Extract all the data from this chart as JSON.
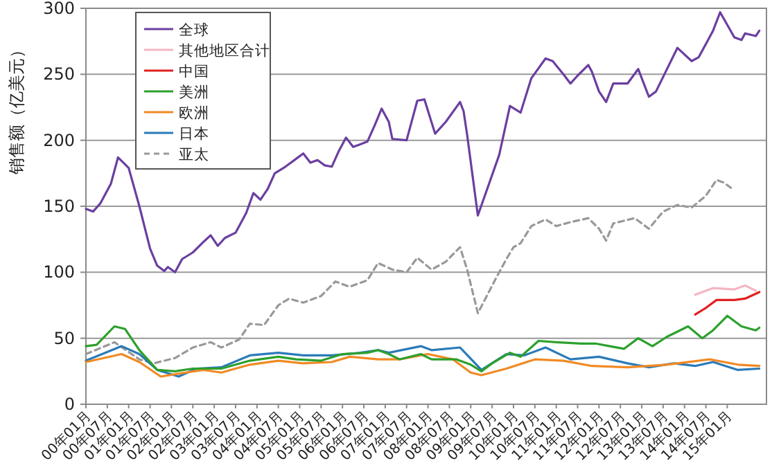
{
  "chart_data": {
    "type": "line",
    "ylabel": "销售额（亿美元）",
    "xlim": [
      "2000-01",
      "2015-12"
    ],
    "ylim": [
      0,
      300
    ],
    "yticks": [
      0,
      50,
      100,
      150,
      200,
      250,
      300
    ],
    "grid": "y",
    "legend": "top left",
    "xticks": [
      {
        "value": "2000-01",
        "label": "00年01月"
      },
      {
        "value": "2000-07",
        "label": "00年07月"
      },
      {
        "value": "2001-01",
        "label": "01年01月"
      },
      {
        "value": "2001-07",
        "label": "01年07月"
      },
      {
        "value": "2002-01",
        "label": "02年01月"
      },
      {
        "value": "2002-07",
        "label": "02年07月"
      },
      {
        "value": "2003-01",
        "label": "03年01月"
      },
      {
        "value": "2003-07",
        "label": "03年07月"
      },
      {
        "value": "2004-01",
        "label": "04年01月"
      },
      {
        "value": "2004-07",
        "label": "04年07月"
      },
      {
        "value": "2005-01",
        "label": "05年01月"
      },
      {
        "value": "2005-07",
        "label": "05年07月"
      },
      {
        "value": "2006-01",
        "label": "06年01月"
      },
      {
        "value": "2006-07",
        "label": "06年07月"
      },
      {
        "value": "2007-01",
        "label": "07年01月"
      },
      {
        "value": "2007-07",
        "label": "07年07月"
      },
      {
        "value": "2008-01",
        "label": "08年01月"
      },
      {
        "value": "2008-07",
        "label": "08年07月"
      },
      {
        "value": "2009-01",
        "label": "09年01月"
      },
      {
        "value": "2009-07",
        "label": "09年07月"
      },
      {
        "value": "2010-01",
        "label": "10年01月"
      },
      {
        "value": "2010-07",
        "label": "10年07月"
      },
      {
        "value": "2011-01",
        "label": "11年01月"
      },
      {
        "value": "2011-07",
        "label": "11年07月"
      },
      {
        "value": "2012-01",
        "label": "12年01月"
      },
      {
        "value": "2012-07",
        "label": "12年07月"
      },
      {
        "value": "2013-01",
        "label": "13年01月"
      },
      {
        "value": "2013-07",
        "label": "13年07月"
      },
      {
        "value": "2014-01",
        "label": "14年01月"
      },
      {
        "value": "2014-07",
        "label": "14年07月"
      },
      {
        "value": "2015-01",
        "label": "15年01月"
      }
    ],
    "series": [
      {
        "name": "全球",
        "color": "#6b3fa0",
        "x": [
          "2000-01",
          "2000-03",
          "2000-05",
          "2000-08",
          "2000-10",
          "2001-01",
          "2001-04",
          "2001-07",
          "2001-09",
          "2001-11",
          "2001-12",
          "2002-02",
          "2002-04",
          "2002-07",
          "2002-10",
          "2002-12",
          "2003-02",
          "2003-04",
          "2003-07",
          "2003-10",
          "2003-12",
          "2004-02",
          "2004-04",
          "2004-06",
          "2004-09",
          "2004-12",
          "2005-02",
          "2005-04",
          "2005-06",
          "2005-08",
          "2005-10",
          "2005-12",
          "2006-02",
          "2006-04",
          "2006-06",
          "2006-08",
          "2006-10",
          "2006-12",
          "2007-02",
          "2007-03",
          "2007-07",
          "2007-10",
          "2007-12",
          "2008-03",
          "2008-06",
          "2008-10",
          "2008-11",
          "2008-12",
          "2009-03",
          "2009-06",
          "2009-09",
          "2009-12",
          "2010-03",
          "2010-06",
          "2010-10",
          "2010-12",
          "2011-03",
          "2011-05",
          "2011-07",
          "2011-10",
          "2011-11",
          "2012-01",
          "2012-03",
          "2012-05",
          "2012-09",
          "2012-12",
          "2013-03",
          "2013-05",
          "2013-07",
          "2013-11",
          "2014-03",
          "2014-05",
          "2014-09",
          "2014-11",
          "2015-03",
          "2015-05",
          "2015-06",
          "2015-09",
          "2015-10"
        ],
        "values": [
          148,
          146,
          152,
          167,
          187,
          179,
          150,
          118,
          105,
          101,
          104,
          100,
          110,
          115,
          123,
          128,
          120,
          126,
          130,
          145,
          160,
          155,
          163,
          175,
          180,
          186,
          190,
          183,
          185,
          181,
          180,
          192,
          202,
          195,
          197,
          199,
          211,
          224,
          214,
          201,
          200,
          230,
          231,
          205,
          214,
          229,
          222,
          204,
          143,
          166,
          189,
          226,
          221,
          247,
          262,
          260,
          250,
          243,
          249,
          257,
          252,
          237,
          229,
          243,
          243,
          254,
          233,
          237,
          248,
          270,
          260,
          263,
          283,
          297,
          278,
          276,
          281,
          279,
          283
        ]
      },
      {
        "name": "其他地区合计",
        "color": "#f4b6c2",
        "x": [
          "2014-04",
          "2014-09",
          "2015-03",
          "2015-06",
          "2015-09"
        ],
        "values": [
          83,
          88,
          87,
          90,
          86
        ]
      },
      {
        "name": "中国",
        "color": "#e02020",
        "x": [
          "2014-04",
          "2014-07",
          "2014-10",
          "2015-03",
          "2015-06",
          "2015-10"
        ],
        "values": [
          68,
          73,
          79,
          79,
          80,
          85
        ]
      },
      {
        "name": "美洲",
        "color": "#2ca02c",
        "x": [
          "2000-01",
          "2000-04",
          "2000-09",
          "2000-12",
          "2001-04",
          "2001-09",
          "2002-02",
          "2002-07",
          "2003-03",
          "2003-11",
          "2004-07",
          "2004-12",
          "2005-07",
          "2006-01",
          "2006-08",
          "2006-11",
          "2007-02",
          "2007-05",
          "2007-11",
          "2008-02",
          "2008-09",
          "2009-01",
          "2009-04",
          "2009-07",
          "2009-12",
          "2010-03",
          "2010-08",
          "2011-01",
          "2011-08",
          "2011-12",
          "2012-04",
          "2012-08",
          "2012-12",
          "2013-04",
          "2013-08",
          "2014-02",
          "2014-06",
          "2014-09",
          "2015-01",
          "2015-05",
          "2015-09",
          "2015-10"
        ],
        "values": [
          44,
          45,
          59,
          57,
          41,
          26,
          25,
          27,
          27,
          33,
          36,
          34,
          33,
          38,
          39,
          41,
          38,
          34,
          38,
          34,
          34,
          30,
          25,
          31,
          39,
          36,
          48,
          47,
          46,
          46,
          44,
          42,
          50,
          44,
          51,
          59,
          50,
          56,
          67,
          59,
          56,
          58
        ]
      },
      {
        "name": "欧洲",
        "color": "#f08a24",
        "x": [
          "2000-01",
          "2000-11",
          "2001-04",
          "2001-10",
          "2002-05",
          "2002-10",
          "2003-03",
          "2003-11",
          "2004-07",
          "2005-02",
          "2005-10",
          "2006-03",
          "2006-11",
          "2007-05",
          "2008-01",
          "2008-08",
          "2009-01",
          "2009-04",
          "2009-11",
          "2010-07",
          "2011-03",
          "2011-11",
          "2012-09",
          "2013-08",
          "2014-08",
          "2015-04",
          "2015-10"
        ],
        "values": [
          32,
          38,
          32,
          21,
          24,
          26,
          24,
          30,
          33,
          31,
          32,
          36,
          34,
          34,
          38,
          34,
          24,
          22,
          27,
          34,
          33,
          29,
          28,
          30,
          34,
          30,
          29
        ]
      },
      {
        "name": "日本",
        "color": "#2a7ab8",
        "x": [
          "2000-01",
          "2000-11",
          "2001-04",
          "2001-09",
          "2002-03",
          "2002-08",
          "2003-03",
          "2003-11",
          "2004-07",
          "2005-02",
          "2005-10",
          "2006-06",
          "2006-11",
          "2007-02",
          "2007-11",
          "2008-02",
          "2008-10",
          "2009-04",
          "2009-11",
          "2010-04",
          "2010-10",
          "2011-05",
          "2012-01",
          "2012-09",
          "2013-03",
          "2013-10",
          "2014-04",
          "2014-09",
          "2015-04",
          "2015-10"
        ],
        "values": [
          33,
          44,
          38,
          26,
          21,
          27,
          28,
          37,
          39,
          37,
          37,
          39,
          41,
          39,
          44,
          41,
          43,
          26,
          38,
          37,
          43,
          34,
          36,
          31,
          28,
          31,
          29,
          32,
          26,
          27
        ]
      },
      {
        "name": "亚太",
        "color": "#999999",
        "line_style": "dashed",
        "x": [
          "2000-01",
          "2000-09",
          "2001-04",
          "2001-08",
          "2002-02",
          "2002-07",
          "2002-12",
          "2003-03",
          "2003-08",
          "2003-11",
          "2004-03",
          "2004-07",
          "2004-10",
          "2005-02",
          "2005-07",
          "2005-11",
          "2006-03",
          "2006-08",
          "2006-11",
          "2007-03",
          "2007-07",
          "2007-10",
          "2008-02",
          "2008-06",
          "2008-10",
          "2008-12",
          "2009-03",
          "2009-08",
          "2009-11",
          "2010-01",
          "2010-03",
          "2010-06",
          "2010-10",
          "2011-01",
          "2011-05",
          "2011-10",
          "2012-01",
          "2012-03",
          "2012-05",
          "2012-11",
          "2013-03",
          "2013-07",
          "2013-11",
          "2014-03",
          "2014-07",
          "2014-10",
          "2014-12",
          "2015-02"
        ],
        "values": [
          38,
          47,
          34,
          31,
          35,
          43,
          47,
          43,
          49,
          61,
          60,
          75,
          80,
          77,
          82,
          93,
          89,
          94,
          107,
          102,
          100,
          111,
          102,
          108,
          119,
          102,
          69,
          95,
          110,
          119,
          122,
          135,
          140,
          135,
          138,
          141,
          133,
          124,
          137,
          141,
          133,
          146,
          151,
          149,
          158,
          170,
          168,
          164
        ]
      }
    ]
  }
}
